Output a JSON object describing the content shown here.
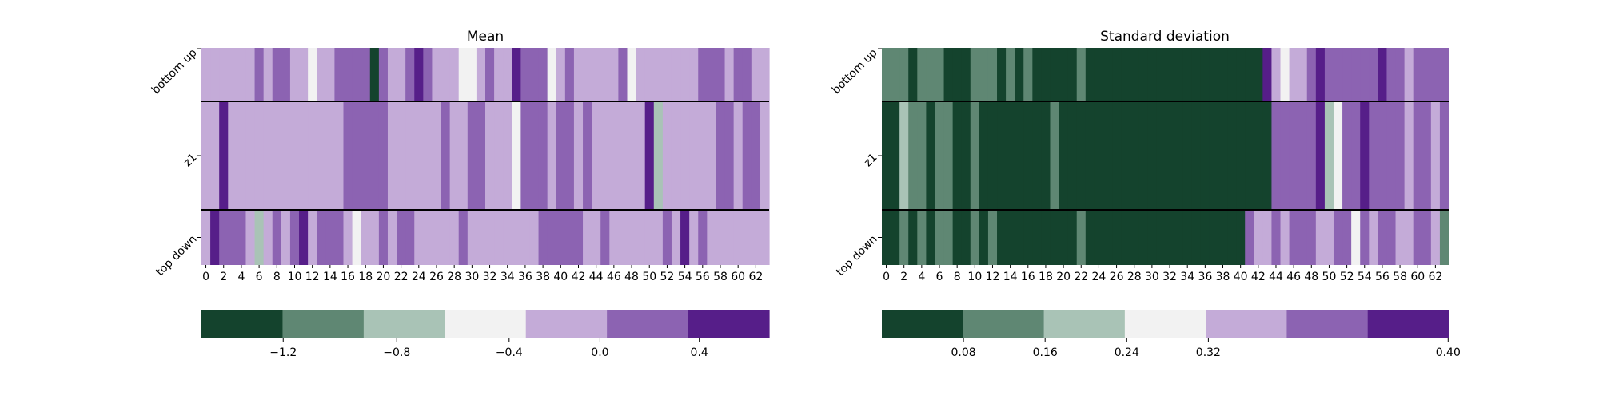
{
  "palette": [
    "#14432d",
    "#5f8773",
    "#a9c3b6",
    "#f2f2f2",
    "#c4abd8",
    "#8c63b2",
    "#561e89"
  ],
  "chart_data": [
    {
      "type": "heatmap",
      "title": "Mean",
      "rows": [
        "bottom up",
        "z1",
        "top down"
      ],
      "x_ticks": [
        "0",
        "2",
        "4",
        "6",
        "8",
        "10",
        "12",
        "14",
        "16",
        "18",
        "20",
        "22",
        "24",
        "26",
        "28",
        "30",
        "32",
        "34",
        "36",
        "38",
        "40",
        "42",
        "44",
        "46",
        "48",
        "50",
        "52",
        "54",
        "56",
        "58",
        "60",
        "62"
      ],
      "colorbar": {
        "ticks": [
          "-1.2",
          "-0.8",
          "-0.4",
          "0.0",
          "0.4"
        ]
      },
      "cells": [
        [
          4,
          4,
          4,
          4,
          4,
          4,
          5,
          4,
          5,
          5,
          4,
          4,
          3,
          4,
          4,
          5,
          5,
          5,
          5,
          0,
          5,
          4,
          4,
          5,
          6,
          5,
          4,
          4,
          4,
          3,
          3,
          4,
          5,
          4,
          4,
          6,
          5,
          5,
          5,
          3,
          4,
          5,
          4,
          4,
          4,
          4,
          4,
          5,
          3,
          4,
          4,
          4,
          4,
          4,
          4,
          4,
          5,
          5,
          5,
          4,
          5,
          5,
          4,
          4,
          4,
          4,
          4
        ],
        [
          4,
          4,
          6,
          4,
          4,
          4,
          4,
          4,
          4,
          4,
          4,
          4,
          4,
          4,
          4,
          4,
          5,
          5,
          5,
          5,
          5,
          4,
          4,
          4,
          4,
          4,
          4,
          5,
          4,
          4,
          5,
          5,
          4,
          4,
          4,
          3,
          5,
          5,
          5,
          4,
          5,
          5,
          4,
          5,
          4,
          4,
          4,
          4,
          4,
          4,
          6,
          2,
          4,
          4,
          4,
          4,
          4,
          4,
          5,
          5,
          4,
          5,
          5,
          4,
          4,
          5,
          4,
          4
        ],
        [
          4,
          6,
          5,
          5,
          5,
          4,
          2,
          4,
          5,
          4,
          5,
          6,
          4,
          5,
          5,
          5,
          4,
          3,
          4,
          4,
          5,
          4,
          5,
          5,
          4,
          4,
          4,
          4,
          4,
          5,
          4,
          4,
          4,
          4,
          4,
          4,
          4,
          4,
          5,
          5,
          5,
          5,
          5,
          4,
          4,
          5,
          4,
          4,
          4,
          4,
          4,
          4,
          5,
          4,
          6,
          4,
          5,
          4,
          4,
          4,
          4,
          4,
          4,
          4,
          4,
          4,
          4,
          4,
          4
        ]
      ]
    },
    {
      "type": "heatmap",
      "title": "Standard deviation",
      "rows": [
        "bottom up",
        "z1",
        "top down"
      ],
      "x_ticks": [
        "0",
        "2",
        "4",
        "6",
        "8",
        "10",
        "12",
        "14",
        "16",
        "18",
        "20",
        "22",
        "24",
        "26",
        "28",
        "30",
        "32",
        "34",
        "36",
        "38",
        "40",
        "42",
        "44",
        "46",
        "48",
        "50",
        "52",
        "54",
        "56",
        "58",
        "60",
        "62"
      ],
      "colorbar": {
        "ticks": [
          "0.08",
          "0.16",
          "0.24",
          "0.32",
          "0.40"
        ]
      },
      "cells": [
        [
          1,
          1,
          1,
          0,
          1,
          1,
          1,
          0,
          0,
          0,
          1,
          1,
          1,
          0,
          1,
          0,
          1,
          0,
          0,
          0,
          0,
          0,
          1,
          0,
          0,
          0,
          0,
          0,
          0,
          0,
          0,
          0,
          0,
          0,
          0,
          0,
          0,
          0,
          0,
          0,
          0,
          0,
          0,
          6,
          4,
          3,
          4,
          4,
          5,
          6,
          5,
          5,
          5,
          5,
          5,
          5,
          6,
          5,
          5,
          4,
          5,
          5,
          5,
          5,
          5,
          5
        ],
        [
          0,
          0,
          2,
          1,
          1,
          0,
          1,
          1,
          0,
          0,
          1,
          0,
          0,
          0,
          0,
          0,
          0,
          0,
          0,
          1,
          0,
          0,
          0,
          0,
          0,
          0,
          0,
          0,
          0,
          0,
          0,
          0,
          0,
          0,
          0,
          0,
          0,
          0,
          0,
          0,
          0,
          0,
          0,
          0,
          5,
          5,
          5,
          5,
          5,
          6,
          2,
          3,
          5,
          5,
          6,
          5,
          5,
          5,
          5,
          4,
          5,
          5,
          4,
          5,
          5,
          5
        ],
        [
          0,
          0,
          1,
          0,
          1,
          0,
          1,
          1,
          0,
          0,
          1,
          0,
          1,
          0,
          0,
          0,
          0,
          0,
          0,
          0,
          0,
          0,
          1,
          0,
          0,
          0,
          0,
          0,
          0,
          0,
          0,
          0,
          0,
          0,
          0,
          0,
          0,
          0,
          0,
          0,
          0,
          5,
          4,
          4,
          5,
          4,
          5,
          5,
          5,
          4,
          4,
          5,
          5,
          3,
          5,
          4,
          5,
          5,
          4,
          4,
          5,
          5,
          4,
          1,
          5
        ]
      ]
    }
  ]
}
